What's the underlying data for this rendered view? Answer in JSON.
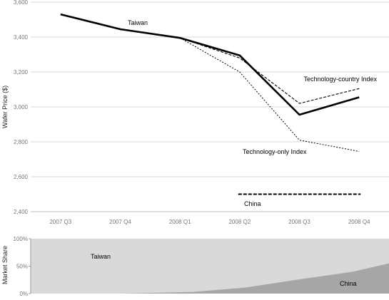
{
  "chart_data": [
    {
      "type": "line",
      "ylabel": "Wafer Price ($)",
      "xlabel": "",
      "categories": [
        "2007 Q3",
        "2007 Q4",
        "2008 Q1",
        "2008 Q2",
        "2008 Q3",
        "2008 Q4"
      ],
      "y_ticks": [
        "2,400",
        "2,600",
        "2,800",
        "3,000",
        "3,200",
        "3,400",
        "3,600"
      ],
      "ylim": [
        2400,
        3600
      ],
      "grid": "horizontal",
      "legend": "none",
      "series": [
        {
          "name": "Taiwan",
          "style": "solid-thick",
          "color": "#000000",
          "values": [
            3530,
            3445,
            3395,
            3295,
            2955,
            3055
          ]
        },
        {
          "name": "Technology-country Index",
          "style": "dashed",
          "color": "#000000",
          "values": [
            null,
            null,
            3395,
            3280,
            3020,
            3105
          ]
        },
        {
          "name": "Technology-only Index",
          "style": "dotted",
          "color": "#000000",
          "values": [
            null,
            null,
            3395,
            3200,
            2810,
            2745
          ]
        },
        {
          "name": "China",
          "style": "dashed-thick",
          "color": "#000000",
          "values": [
            null,
            null,
            null,
            2500,
            2500,
            2500
          ]
        }
      ]
    },
    {
      "type": "area",
      "ylabel": "Market Share",
      "y_ticks": [
        "0%",
        "50%",
        "100%"
      ],
      "ylim": [
        0,
        100
      ],
      "series": [
        {
          "name": "Taiwan",
          "color": "#d9d9d9",
          "x": [
            0,
            0.25,
            0.45,
            0.6,
            0.75,
            0.9,
            1.0
          ],
          "values": [
            100,
            100,
            97,
            89,
            74,
            60,
            45
          ]
        },
        {
          "name": "China",
          "color": "#a6a6a6",
          "x": [
            0,
            0.25,
            0.45,
            0.6,
            0.75,
            0.9,
            1.0
          ],
          "values": [
            0,
            0,
            3,
            11,
            26,
            40,
            55
          ]
        }
      ]
    }
  ]
}
